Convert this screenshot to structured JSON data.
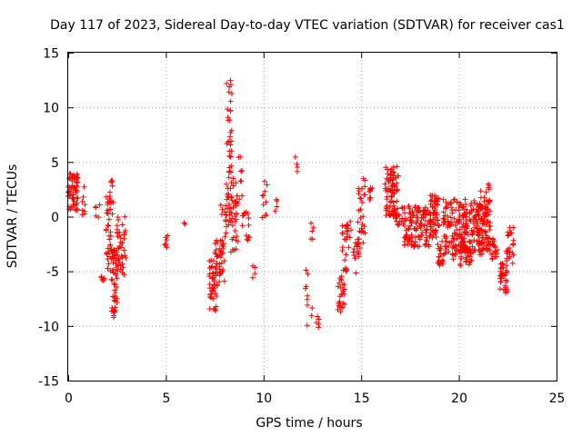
{
  "chart_data": {
    "type": "scatter",
    "title": "Day 117 of 2023, Sidereal Day-to-day VTEC variation (SDTVAR) for receiver cas1",
    "xlabel": "GPS time / hours",
    "ylabel": "SDTVAR / TECUs",
    "xlim": [
      0,
      25
    ],
    "ylim": [
      -15,
      15
    ],
    "xticks": [
      0,
      5,
      10,
      15,
      20,
      25
    ],
    "yticks": [
      -15,
      -10,
      -5,
      0,
      5,
      10,
      15
    ],
    "xtick_labels": [
      "0",
      "5",
      "10",
      "15",
      "20",
      "25"
    ],
    "ytick_labels": [
      "-15",
      "-10",
      "-5",
      "0",
      "5",
      "10",
      "15"
    ],
    "grid": true,
    "marker": "+",
    "series_color": "#ff0000",
    "clusters": [
      {
        "x": [
          0.0,
          0.5
        ],
        "y": [
          0.5,
          4.0
        ],
        "n": 60
      },
      {
        "x": [
          0.7,
          0.9
        ],
        "y": [
          0.0,
          3.8
        ],
        "n": 8
      },
      {
        "x": [
          1.4,
          1.7
        ],
        "y": [
          -0.5,
          1.2
        ],
        "n": 5
      },
      {
        "x": [
          1.6,
          1.9
        ],
        "y": [
          -5.9,
          -5.2
        ],
        "n": 6
      },
      {
        "x": [
          1.9,
          2.3
        ],
        "y": [
          -5.0,
          3.5
        ],
        "n": 45
      },
      {
        "x": [
          2.2,
          2.5
        ],
        "y": [
          -9.3,
          -3.0
        ],
        "n": 45
      },
      {
        "x": [
          2.5,
          2.95
        ],
        "y": [
          -5.8,
          0.0
        ],
        "n": 40
      },
      {
        "x": [
          4.9,
          5.1
        ],
        "y": [
          -4.0,
          -1.5
        ],
        "n": 8
      },
      {
        "x": [
          5.9,
          6.1
        ],
        "y": [
          -0.8,
          -0.3
        ],
        "n": 2
      },
      {
        "x": [
          7.2,
          7.6
        ],
        "y": [
          -8.7,
          -4.0
        ],
        "n": 40
      },
      {
        "x": [
          7.5,
          8.0
        ],
        "y": [
          -6.5,
          -2.0
        ],
        "n": 40
      },
      {
        "x": [
          7.8,
          8.1
        ],
        "y": [
          -3.5,
          1.4
        ],
        "n": 12
      },
      {
        "x": [
          8.1,
          8.4
        ],
        "y": [
          -1.0,
          13.0
        ],
        "n": 55
      },
      {
        "x": [
          8.3,
          8.7
        ],
        "y": [
          -3.5,
          3.5
        ],
        "n": 30
      },
      {
        "x": [
          8.7,
          8.9
        ],
        "y": [
          1.5,
          5.5
        ],
        "n": 8
      },
      {
        "x": [
          8.9,
          9.3
        ],
        "y": [
          -2.2,
          0.5
        ],
        "n": 14
      },
      {
        "x": [
          9.4,
          9.6
        ],
        "y": [
          -5.8,
          -4.5
        ],
        "n": 4
      },
      {
        "x": [
          9.9,
          10.2
        ],
        "y": [
          -0.5,
          3.5
        ],
        "n": 10
      },
      {
        "x": [
          10.5,
          10.7
        ],
        "y": [
          0.2,
          2.0
        ],
        "n": 4
      },
      {
        "x": [
          11.6,
          11.8
        ],
        "y": [
          4.0,
          5.5
        ],
        "n": 4
      },
      {
        "x": [
          12.1,
          12.3
        ],
        "y": [
          -8.0,
          -4.5
        ],
        "n": 6
      },
      {
        "x": [
          12.4,
          12.6
        ],
        "y": [
          -2.3,
          -0.3
        ],
        "n": 5
      },
      {
        "x": [
          12.2,
          12.5
        ],
        "y": [
          -10.0,
          -8.0
        ],
        "n": 4
      },
      {
        "x": [
          12.7,
          12.9
        ],
        "y": [
          -10.5,
          -9.0
        ],
        "n": 5
      },
      {
        "x": [
          13.8,
          14.2
        ],
        "y": [
          -8.7,
          -5.5
        ],
        "n": 25
      },
      {
        "x": [
          14.0,
          14.4
        ],
        "y": [
          -6.0,
          -0.5
        ],
        "n": 25
      },
      {
        "x": [
          14.4,
          14.6
        ],
        "y": [
          -2.0,
          0.0
        ],
        "n": 3
      },
      {
        "x": [
          14.6,
          14.9
        ],
        "y": [
          -5.2,
          -2.0
        ],
        "n": 15
      },
      {
        "x": [
          14.8,
          15.2
        ],
        "y": [
          -3.0,
          3.5
        ],
        "n": 30
      },
      {
        "x": [
          15.4,
          15.6
        ],
        "y": [
          1.5,
          3.0
        ],
        "n": 10
      },
      {
        "x": [
          16.2,
          16.9
        ],
        "y": [
          0.0,
          4.6
        ],
        "n": 80
      },
      {
        "x": [
          16.7,
          17.2
        ],
        "y": [
          -1.0,
          1.0
        ],
        "n": 20
      },
      {
        "x": [
          17.2,
          18.5
        ],
        "y": [
          -2.8,
          1.0
        ],
        "n": 110
      },
      {
        "x": [
          18.5,
          19.0
        ],
        "y": [
          -2.0,
          2.0
        ],
        "n": 60
      },
      {
        "x": [
          18.9,
          19.2
        ],
        "y": [
          -5.2,
          -2.0
        ],
        "n": 20
      },
      {
        "x": [
          19.2,
          21.6
        ],
        "y": [
          -3.5,
          1.6
        ],
        "n": 260
      },
      {
        "x": [
          19.7,
          20.7
        ],
        "y": [
          -4.5,
          -2.8
        ],
        "n": 30
      },
      {
        "x": [
          21.1,
          21.6
        ],
        "y": [
          -3.5,
          3.0
        ],
        "n": 30
      },
      {
        "x": [
          21.6,
          22.0
        ],
        "y": [
          -4.0,
          -2.0
        ],
        "n": 20
      },
      {
        "x": [
          22.1,
          22.5
        ],
        "y": [
          -7.0,
          -4.0
        ],
        "n": 35
      },
      {
        "x": [
          22.4,
          22.8
        ],
        "y": [
          -4.5,
          -1.0
        ],
        "n": 25
      }
    ]
  }
}
